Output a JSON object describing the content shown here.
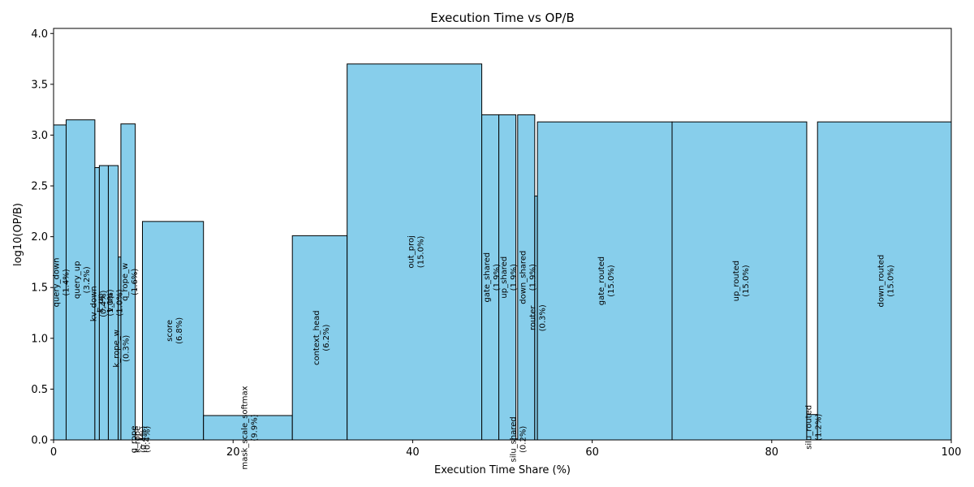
{
  "chart_data": {
    "type": "bar",
    "title": "Execution Time vs OP/B",
    "xlabel": "Execution Time Share (%)",
    "ylabel": "log10(OP/B)",
    "xlim": [
      0,
      100
    ],
    "ylim": [
      0,
      4.05
    ],
    "xticks": [
      0,
      20,
      40,
      60,
      80,
      100
    ],
    "yticks": [
      0.0,
      0.5,
      1.0,
      1.5,
      2.0,
      2.5,
      3.0,
      3.5,
      4.0
    ],
    "grid": false,
    "bars": [
      {
        "name": "query_down",
        "share": "1.4%",
        "x0": 0.0,
        "x1": 1.4,
        "value": 3.1
      },
      {
        "name": "query_up",
        "share": "3.2%",
        "x0": 1.4,
        "x1": 4.6,
        "value": 3.15
      },
      {
        "name": "kv_down",
        "share": "0.4%",
        "x0": 4.6,
        "x1": 5.1,
        "value": 2.68
      },
      {
        "name": "k_up",
        "share": "1.0%",
        "x0": 5.1,
        "x1": 6.1,
        "value": 2.7
      },
      {
        "name": "v_up",
        "share": "1.0%",
        "x0": 6.1,
        "x1": 7.2,
        "value": 2.7
      },
      {
        "name": "k_rope_w",
        "share": "0.3%",
        "x0": 7.2,
        "x1": 7.5,
        "value": 1.8
      },
      {
        "name": "q_rope_w",
        "share": "1.6%",
        "x0": 7.5,
        "x1": 9.1,
        "value": 3.11
      },
      {
        "name": "q_rope",
        "share": "0.4%",
        "x0": 9.1,
        "x1": 9.5,
        "value": 0.01
      },
      {
        "name": "k_rope",
        "share": "0.4%",
        "x0": 9.5,
        "x1": 9.9,
        "value": 0.01
      },
      {
        "name": "score",
        "share": "6.8%",
        "x0": 9.9,
        "x1": 16.7,
        "value": 2.15
      },
      {
        "name": "mask_scale_softmax",
        "share": "9.9%",
        "x0": 16.7,
        "x1": 26.6,
        "value": 0.24
      },
      {
        "name": "context_head",
        "share": "6.2%",
        "x0": 26.6,
        "x1": 32.7,
        "value": 2.01
      },
      {
        "name": "out_proj",
        "share": "15.0%",
        "x0": 32.7,
        "x1": 47.7,
        "value": 3.7
      },
      {
        "name": "gate_shared",
        "share": "1.9%",
        "x0": 47.7,
        "x1": 49.6,
        "value": 3.2
      },
      {
        "name": "up_shared",
        "share": "1.9%",
        "x0": 49.6,
        "x1": 51.5,
        "value": 3.2
      },
      {
        "name": "silu_shared",
        "share": "0.2%",
        "x0": 51.5,
        "x1": 51.7,
        "value": 0.01
      },
      {
        "name": "down_shared",
        "share": "1.9%",
        "x0": 51.7,
        "x1": 53.6,
        "value": 3.2
      },
      {
        "name": "router",
        "share": "0.3%",
        "x0": 53.6,
        "x1": 53.9,
        "value": 2.4
      },
      {
        "name": "gate_routed",
        "share": "15.0%",
        "x0": 53.9,
        "x1": 68.9,
        "value": 3.13
      },
      {
        "name": "up_routed",
        "share": "15.0%",
        "x0": 68.9,
        "x1": 83.9,
        "value": 3.13
      },
      {
        "name": "silu_routed",
        "share": "1.2%",
        "x0": 83.9,
        "x1": 85.1,
        "value": 0.25
      },
      {
        "name": "down_routed",
        "share": "15.0%",
        "x0": 85.1,
        "x1": 100.0,
        "value": 3.13
      }
    ]
  }
}
